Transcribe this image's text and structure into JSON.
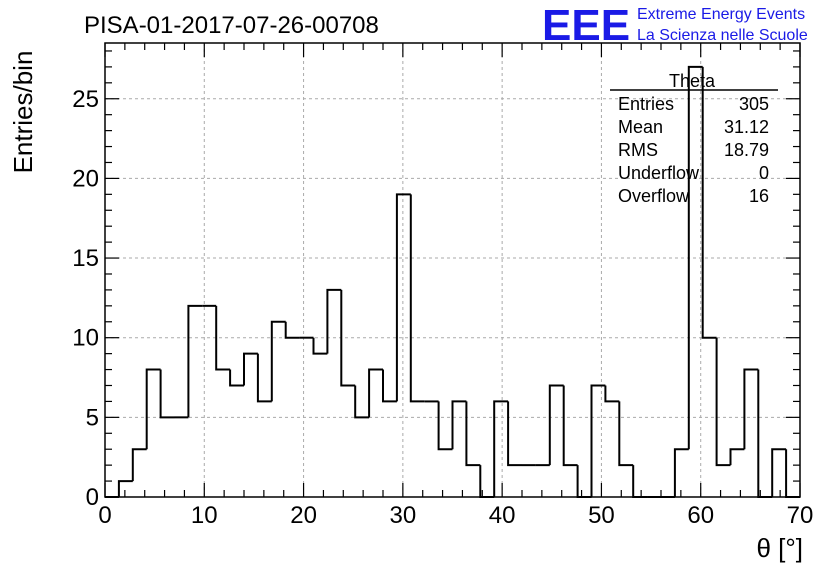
{
  "header": {
    "run_title": "PISA-01-2017-07-26-00708",
    "logo_text": "EEE",
    "logo_line1": "Extreme Energy Events",
    "logo_line2": "La Scienza nelle Scuole",
    "logo_color": "#1a1ae6"
  },
  "stats_box": {
    "name": "Theta",
    "rows": [
      {
        "label": "Entries",
        "value": "305"
      },
      {
        "label": "Mean",
        "value": "31.12"
      },
      {
        "label": "RMS",
        "value": "18.79"
      },
      {
        "label": "Underflow",
        "value": "0"
      },
      {
        "label": "Overflow",
        "value": "16"
      }
    ]
  },
  "chart_data": {
    "type": "bar",
    "style": "step-histogram",
    "xlabel": "θ [°]",
    "ylabel": "Entries/bin",
    "xlim": [
      0,
      70
    ],
    "ylim": [
      0,
      28.5
    ],
    "grid": true,
    "bin_width": 1.4,
    "x_ticks": [
      0,
      10,
      20,
      30,
      40,
      50,
      60,
      70
    ],
    "y_ticks": [
      0,
      5,
      10,
      15,
      20,
      25
    ],
    "values": [
      0,
      1,
      3,
      8,
      5,
      5,
      12,
      12,
      8,
      7,
      9,
      6,
      11,
      10,
      10,
      9,
      13,
      7,
      5,
      8,
      6,
      19,
      6,
      6,
      3,
      6,
      2,
      0,
      6,
      2,
      2,
      2,
      7,
      2,
      0,
      7,
      6,
      2,
      0,
      0,
      0,
      3,
      27,
      10,
      2,
      3,
      8,
      0,
      3,
      0
    ]
  }
}
